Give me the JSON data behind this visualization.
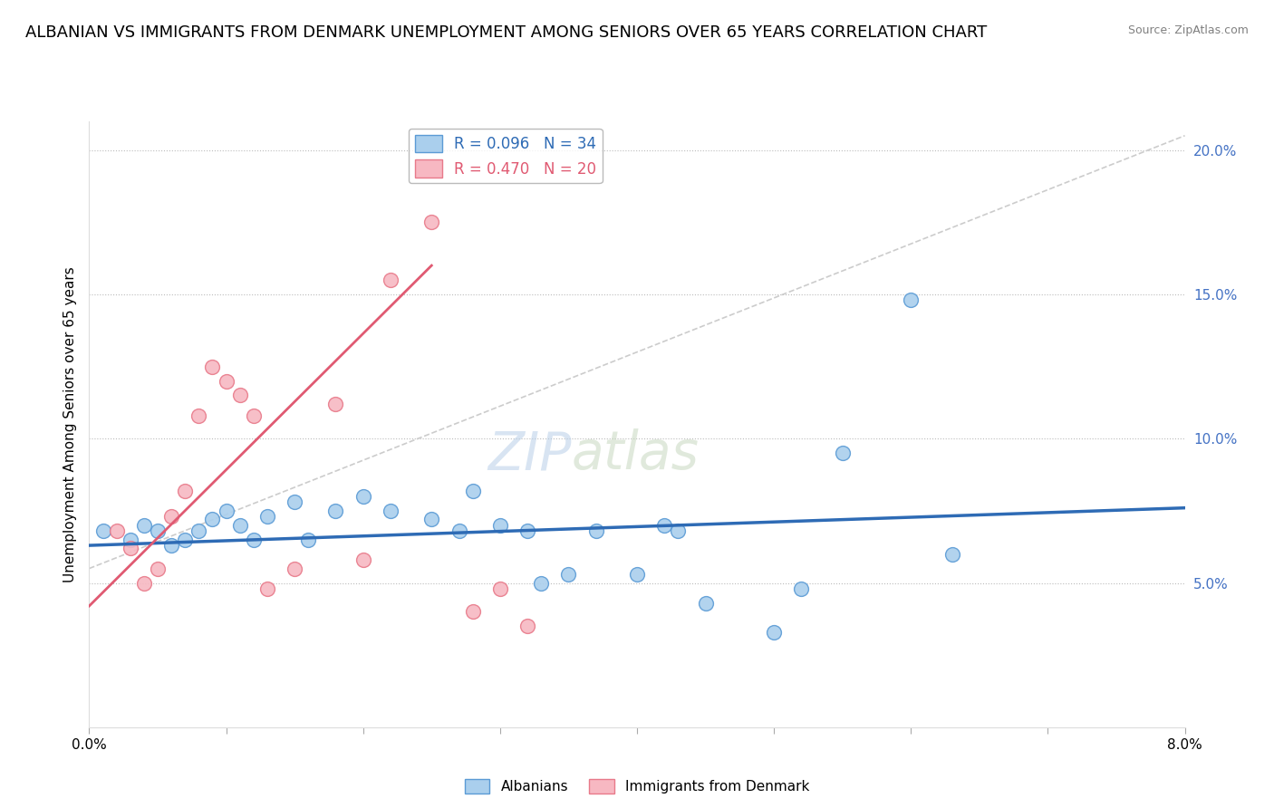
{
  "title": "ALBANIAN VS IMMIGRANTS FROM DENMARK UNEMPLOYMENT AMONG SENIORS OVER 65 YEARS CORRELATION CHART",
  "source": "Source: ZipAtlas.com",
  "ylabel": "Unemployment Among Seniors over 65 years",
  "xlim": [
    0.0,
    0.08
  ],
  "ylim": [
    0.0,
    0.21
  ],
  "yticks": [
    0.05,
    0.1,
    0.15,
    0.2
  ],
  "ytick_labels": [
    "5.0%",
    "10.0%",
    "15.0%",
    "20.0%"
  ],
  "xticks": [
    0.0,
    0.01,
    0.02,
    0.03,
    0.04,
    0.05,
    0.06,
    0.07,
    0.08
  ],
  "xtick_labels": [
    "0.0%",
    "",
    "",
    "",
    "",
    "",
    "",
    "",
    "8.0%"
  ],
  "legend1_label": "R = 0.096   N = 34",
  "legend2_label": "R = 0.470   N = 20",
  "scatter_blue": [
    [
      0.001,
      0.068
    ],
    [
      0.003,
      0.065
    ],
    [
      0.004,
      0.07
    ],
    [
      0.005,
      0.068
    ],
    [
      0.006,
      0.063
    ],
    [
      0.007,
      0.065
    ],
    [
      0.008,
      0.068
    ],
    [
      0.009,
      0.072
    ],
    [
      0.01,
      0.075
    ],
    [
      0.011,
      0.07
    ],
    [
      0.012,
      0.065
    ],
    [
      0.013,
      0.073
    ],
    [
      0.015,
      0.078
    ],
    [
      0.016,
      0.065
    ],
    [
      0.018,
      0.075
    ],
    [
      0.02,
      0.08
    ],
    [
      0.022,
      0.075
    ],
    [
      0.025,
      0.072
    ],
    [
      0.027,
      0.068
    ],
    [
      0.028,
      0.082
    ],
    [
      0.03,
      0.07
    ],
    [
      0.032,
      0.068
    ],
    [
      0.033,
      0.05
    ],
    [
      0.035,
      0.053
    ],
    [
      0.037,
      0.068
    ],
    [
      0.04,
      0.053
    ],
    [
      0.042,
      0.07
    ],
    [
      0.043,
      0.068
    ],
    [
      0.045,
      0.043
    ],
    [
      0.05,
      0.033
    ],
    [
      0.052,
      0.048
    ],
    [
      0.055,
      0.095
    ],
    [
      0.06,
      0.148
    ],
    [
      0.063,
      0.06
    ]
  ],
  "scatter_pink": [
    [
      0.002,
      0.068
    ],
    [
      0.003,
      0.062
    ],
    [
      0.004,
      0.05
    ],
    [
      0.005,
      0.055
    ],
    [
      0.006,
      0.073
    ],
    [
      0.007,
      0.082
    ],
    [
      0.008,
      0.108
    ],
    [
      0.009,
      0.125
    ],
    [
      0.01,
      0.12
    ],
    [
      0.011,
      0.115
    ],
    [
      0.012,
      0.108
    ],
    [
      0.013,
      0.048
    ],
    [
      0.015,
      0.055
    ],
    [
      0.018,
      0.112
    ],
    [
      0.02,
      0.058
    ],
    [
      0.022,
      0.155
    ],
    [
      0.025,
      0.175
    ],
    [
      0.028,
      0.04
    ],
    [
      0.03,
      0.048
    ],
    [
      0.032,
      0.035
    ]
  ],
  "blue_line_x": [
    0.0,
    0.08
  ],
  "blue_line_y": [
    0.063,
    0.076
  ],
  "pink_line_x": [
    0.0,
    0.025
  ],
  "pink_line_y": [
    0.042,
    0.16
  ],
  "diag_line_x": [
    0.0,
    0.08
  ],
  "diag_line_y": [
    0.055,
    0.205
  ],
  "watermark_zip": "ZIP",
  "watermark_atlas": "atlas",
  "title_fontsize": 13,
  "axis_fontsize": 11,
  "tick_fontsize": 11
}
